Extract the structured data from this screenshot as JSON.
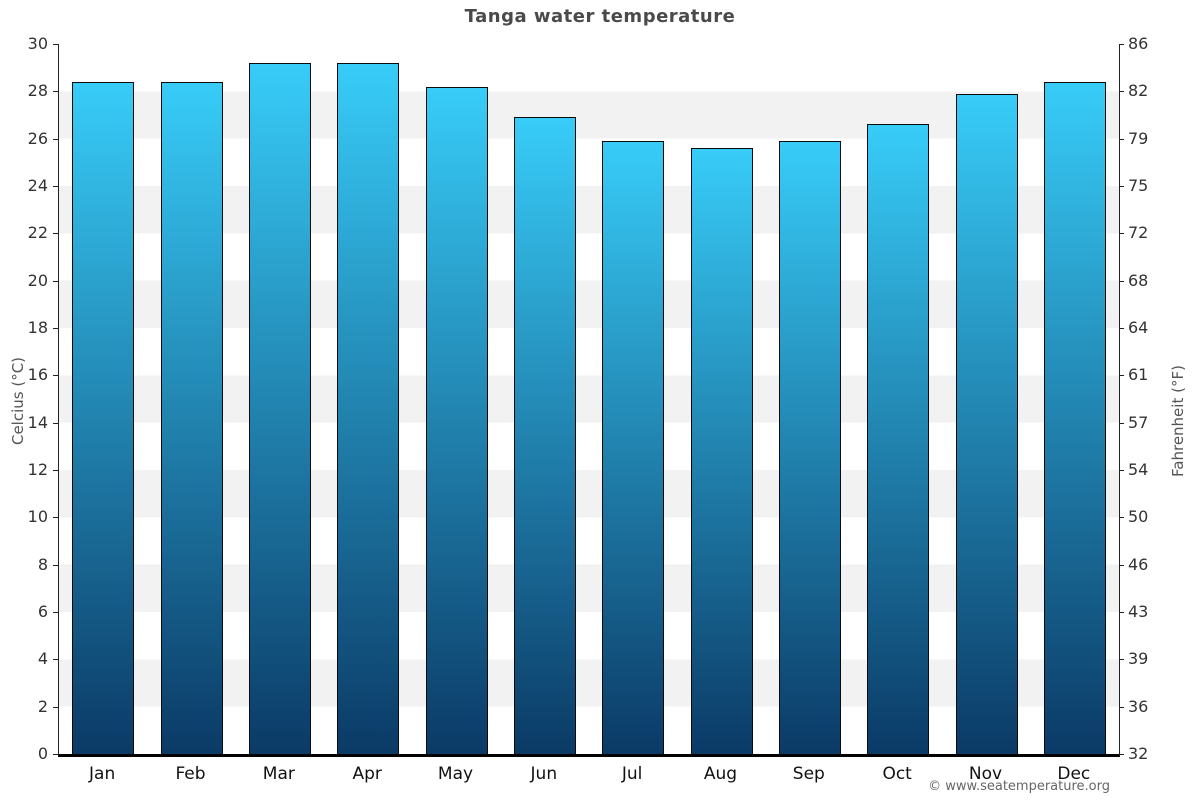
{
  "title": "Tanga water temperature",
  "axes": {
    "left_label": "Celcius (°C)",
    "right_label": "Fahrenheit (°F)",
    "celsius_ticks": [
      30,
      28,
      26,
      24,
      22,
      20,
      18,
      16,
      14,
      12,
      10,
      8,
      6,
      4,
      2,
      0
    ],
    "fahrenheit_ticks": [
      "86",
      "82",
      "79",
      "75",
      "72",
      "68",
      "64",
      "61",
      "57",
      "54",
      "50",
      "46",
      "43",
      "39",
      "36",
      "32"
    ]
  },
  "chart_data": {
    "type": "bar",
    "title": "Tanga water temperature",
    "categories": [
      "Jan",
      "Feb",
      "Mar",
      "Apr",
      "May",
      "Jun",
      "Jul",
      "Aug",
      "Sep",
      "Oct",
      "Nov",
      "Dec"
    ],
    "values": [
      28.4,
      28.4,
      29.2,
      29.2,
      28.2,
      26.9,
      25.9,
      25.6,
      25.9,
      26.6,
      27.9,
      28.4
    ],
    "unit": "°C",
    "ylabel": "Celcius (°C)",
    "y2label": "Fahrenheit (°F)",
    "ylim": [
      0,
      30
    ],
    "y2lim": [
      32,
      86
    ],
    "grid": "alternating-horizontal-bands-every-2C",
    "legend": "none"
  },
  "footer": {
    "copyright": "© www.seatemperature.org"
  },
  "colors": {
    "bar_top": "#38ccf8",
    "bar_bottom": "#0b3a66",
    "bar_border": "#0a0a0a",
    "band_gray": "#f2f2f2",
    "band_white": "#ffffff",
    "title": "#4a4a4a",
    "axis_title": "#555555",
    "tick_label": "#333333",
    "tick_mark": "#222222",
    "copyright": "#666666"
  }
}
